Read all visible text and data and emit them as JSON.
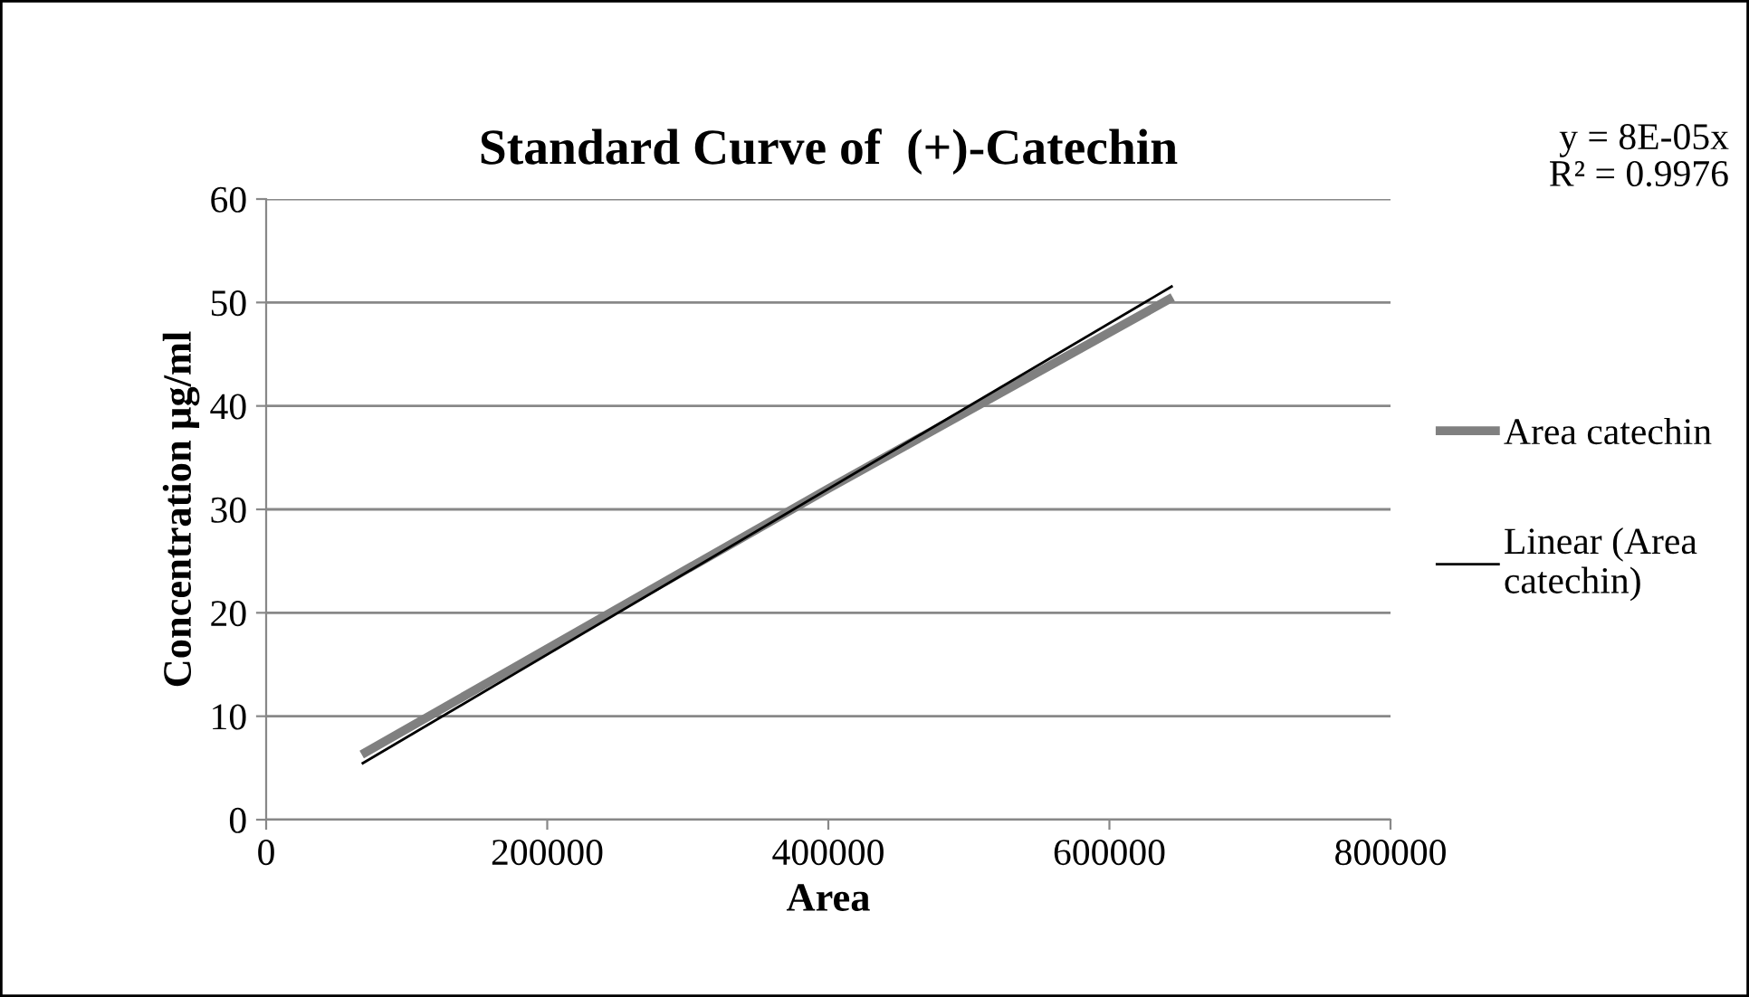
{
  "chart_data": {
    "type": "line",
    "title": "Standard Curve of  (+)-Catechin",
    "xlabel": "Area",
    "ylabel": "Concentration µg/ml",
    "x": [
      68000,
      400000,
      645000
    ],
    "series": [
      {
        "name": "Area catechin",
        "color": "#808080",
        "values": [
          6.3,
          32,
          50.5
        ]
      },
      {
        "name": "Linear (Area catechin)",
        "color": "#000000",
        "type": "line",
        "x": [
          68000,
          645000
        ],
        "values": [
          5.4,
          51.6
        ]
      }
    ],
    "annotations": [
      "y = 8E-05x\nR² = 0.9976"
    ],
    "xlim": [
      0,
      800000
    ],
    "xticks": [
      0,
      200000,
      400000,
      600000,
      800000
    ],
    "ylim": [
      0,
      60
    ],
    "yticks": [
      0,
      10,
      20,
      30,
      40,
      50,
      60
    ],
    "grid": "y",
    "legend": "right",
    "marker": "none",
    "line_style": "solid"
  }
}
